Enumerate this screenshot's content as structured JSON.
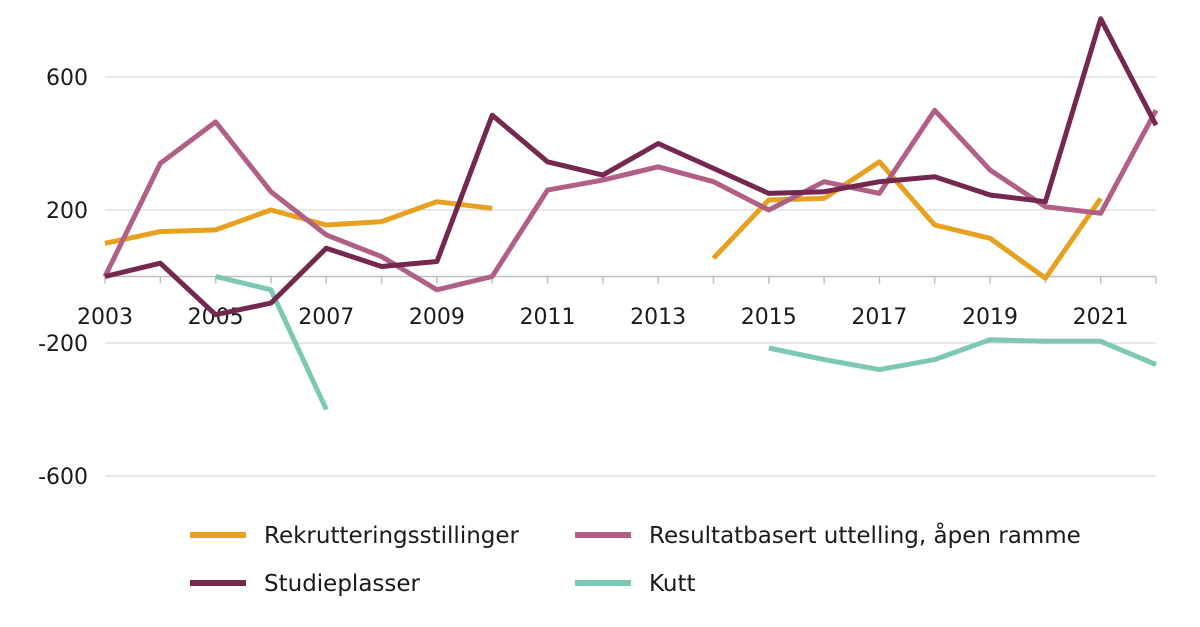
{
  "chart_data": {
    "type": "line",
    "x": [
      2003,
      2004,
      2005,
      2006,
      2007,
      2008,
      2009,
      2010,
      2011,
      2012,
      2013,
      2014,
      2015,
      2016,
      2017,
      2018,
      2019,
      2020,
      2021,
      2022
    ],
    "x_tick_labels": [
      "2003",
      "2005",
      "2007",
      "2009",
      "2011",
      "2013",
      "2015",
      "2017",
      "2019",
      "2021"
    ],
    "y_tick_values": [
      600,
      200,
      -200,
      -600
    ],
    "y_tick_labels": [
      "600",
      "200",
      "-200",
      "-600"
    ],
    "ylim": [
      -600,
      760
    ],
    "grid": "horizontal",
    "legend_position": "bottom",
    "series": [
      {
        "name": "Rekrutteringsstillinger",
        "color": "#E5A11F",
        "values": [
          100,
          135,
          140,
          200,
          155,
          165,
          225,
          205,
          null,
          null,
          null,
          55,
          230,
          235,
          345,
          155,
          115,
          -5,
          235,
          null
        ]
      },
      {
        "name": "Resultatbasert uttelling, åpen ramme",
        "color": "#B05F86",
        "values": [
          0,
          340,
          465,
          255,
          125,
          60,
          -40,
          0,
          260,
          290,
          330,
          285,
          200,
          285,
          250,
          500,
          320,
          210,
          190,
          500
        ]
      },
      {
        "name": "Studieplasser",
        "color": "#75284F",
        "values": [
          0,
          40,
          -115,
          -80,
          85,
          30,
          45,
          485,
          345,
          305,
          400,
          325,
          250,
          255,
          285,
          300,
          245,
          225,
          775,
          455
        ]
      },
      {
        "name": "Kutt",
        "color": "#7DC7B5",
        "values": [
          null,
          null,
          0,
          -40,
          -400,
          null,
          null,
          null,
          null,
          null,
          null,
          null,
          -215,
          -250,
          -280,
          -250,
          -190,
          -195,
          -195,
          -265
        ]
      }
    ]
  }
}
